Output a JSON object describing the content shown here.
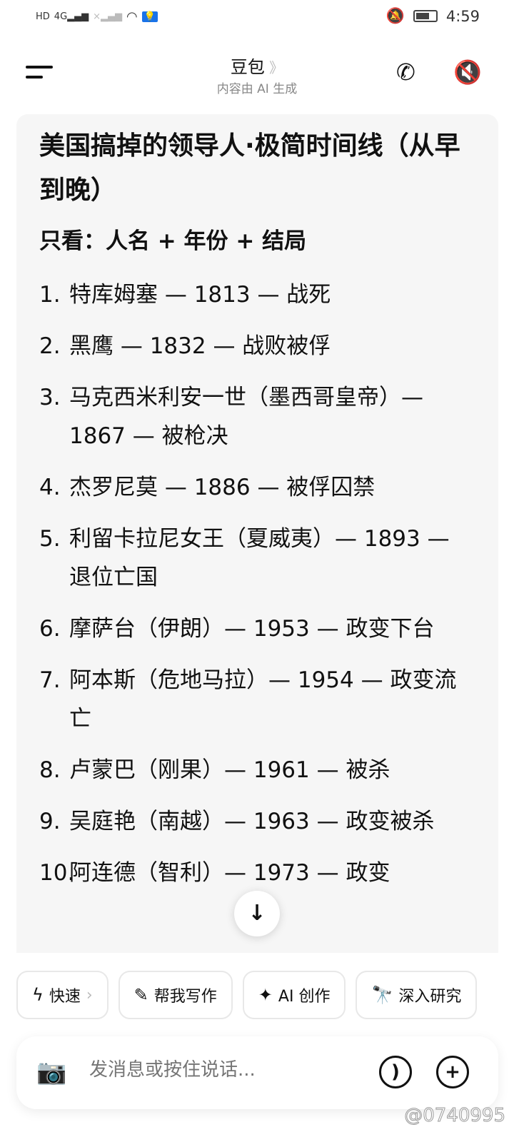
{
  "status_bar": {
    "left_icons": [
      "hd-icon",
      "4g-signal-icon",
      "no-signal-icon",
      "wifi-icon",
      "bulb-icon"
    ],
    "time": "4:59",
    "right_icons": [
      "bell-off-icon",
      "battery-icon"
    ]
  },
  "header": {
    "title": "豆包",
    "subtitle": "内容由 AI 生成",
    "icons": [
      "menu-icon",
      "phone-icon",
      "speaker-muted-icon"
    ]
  },
  "message": {
    "title": "美国搞掉的领导人·极简时间线（从早到晚）",
    "subtitle": "只看：人名 + 年份 + 结局",
    "items": [
      {
        "n": "1.",
        "text": "特库姆塞 — 1813 — 战死"
      },
      {
        "n": "2.",
        "text": "黑鹰 — 1832 — 战败被俘"
      },
      {
        "n": "3.",
        "text": "马克西米利安一世（墨西哥皇帝）— 1867 — 被枪决"
      },
      {
        "n": "4.",
        "text": "杰罗尼莫 — 1886 — 被俘囚禁"
      },
      {
        "n": "5.",
        "text": "利留卡拉尼女王（夏威夷）— 1893 — 退位亡国"
      },
      {
        "n": "6.",
        "text": "摩萨台（伊朗）— 1953 — 政变下台"
      },
      {
        "n": "7.",
        "text": "阿本斯（危地马拉）— 1954 — 政变流亡"
      },
      {
        "n": "8.",
        "text": "卢蒙巴（刚果）— 1961 — 被杀"
      },
      {
        "n": "9.",
        "text": "吴庭艳（南越）— 1963 — 政变被杀"
      },
      {
        "n": "10.",
        "text": "阿连德（智利）— 1973 — 政变"
      }
    ]
  },
  "chips": [
    {
      "icon": "lightning-icon",
      "label": "快速",
      "chev": "›"
    },
    {
      "icon": "edit-icon",
      "label": "帮我写作"
    },
    {
      "icon": "sparkle-icon",
      "label": "AI 创作"
    },
    {
      "icon": "telescope-icon",
      "label": "深入研究"
    }
  ],
  "input": {
    "placeholder": "发消息或按住说话..."
  },
  "watermark": "@0740995"
}
